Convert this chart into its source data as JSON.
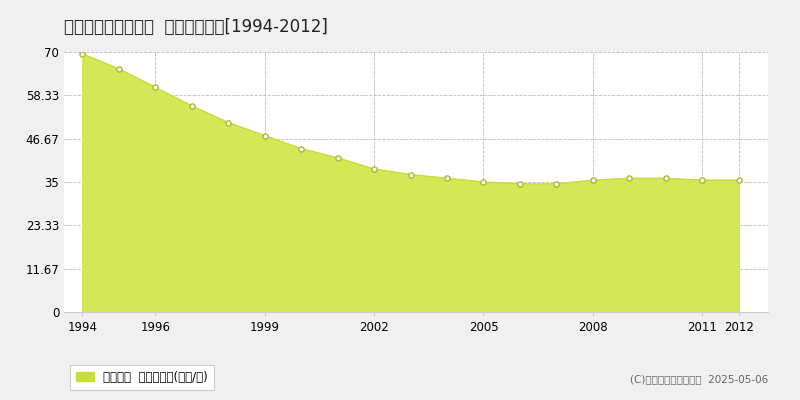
{
  "title": "仙台市若林区石垣町  公示地価推移[1994-2012]",
  "years": [
    1994,
    1995,
    1996,
    1997,
    1998,
    1999,
    2000,
    2001,
    2002,
    2003,
    2004,
    2005,
    2006,
    2007,
    2008,
    2009,
    2010,
    2011,
    2012
  ],
  "values": [
    69.5,
    65.5,
    60.5,
    55.5,
    51.0,
    47.5,
    44.0,
    41.5,
    38.5,
    37.0,
    36.0,
    35.0,
    34.5,
    34.5,
    35.5,
    36.0,
    36.0,
    35.5,
    35.5
  ],
  "ylim": [
    0,
    70
  ],
  "yticks": [
    0,
    11.67,
    23.33,
    35,
    46.67,
    58.33,
    70
  ],
  "ytick_labels": [
    "0",
    "11.67",
    "23.33",
    "35",
    "46.67",
    "58.33",
    "70"
  ],
  "xticks": [
    1994,
    1996,
    1999,
    2002,
    2005,
    2008,
    2011,
    2012
  ],
  "area_color": "#d4e857",
  "line_color": "#c8dc3c",
  "marker_color": "#ffffff",
  "marker_edge_color": "#a8b832",
  "grid_color": "#bbbbbb",
  "bg_color": "#f0f0f0",
  "plot_bg_color": "#ffffff",
  "legend_label": "公示地価  平均坪単価(万円/坪)",
  "legend_color": "#c8dc3c",
  "copyright_text": "(C)土地価格ドットコム  2025-05-06",
  "title_fontsize": 12,
  "axis_fontsize": 8.5,
  "legend_fontsize": 8.5
}
